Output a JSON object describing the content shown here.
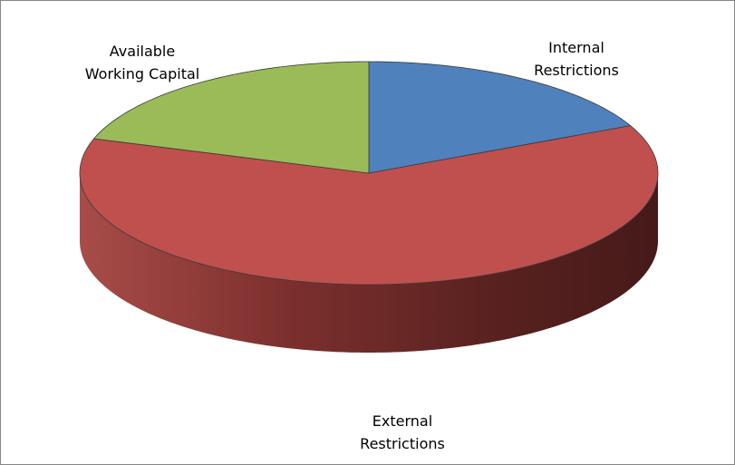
{
  "chart_data": {
    "type": "pie3d",
    "categories": [
      "Internal\nRestrictions",
      "External\nRestrictions",
      "Available\nWorking Capital"
    ],
    "values": [
      18,
      62,
      20
    ],
    "colors": [
      "#4f81bd",
      "#c0504d",
      "#9bbb59"
    ]
  }
}
